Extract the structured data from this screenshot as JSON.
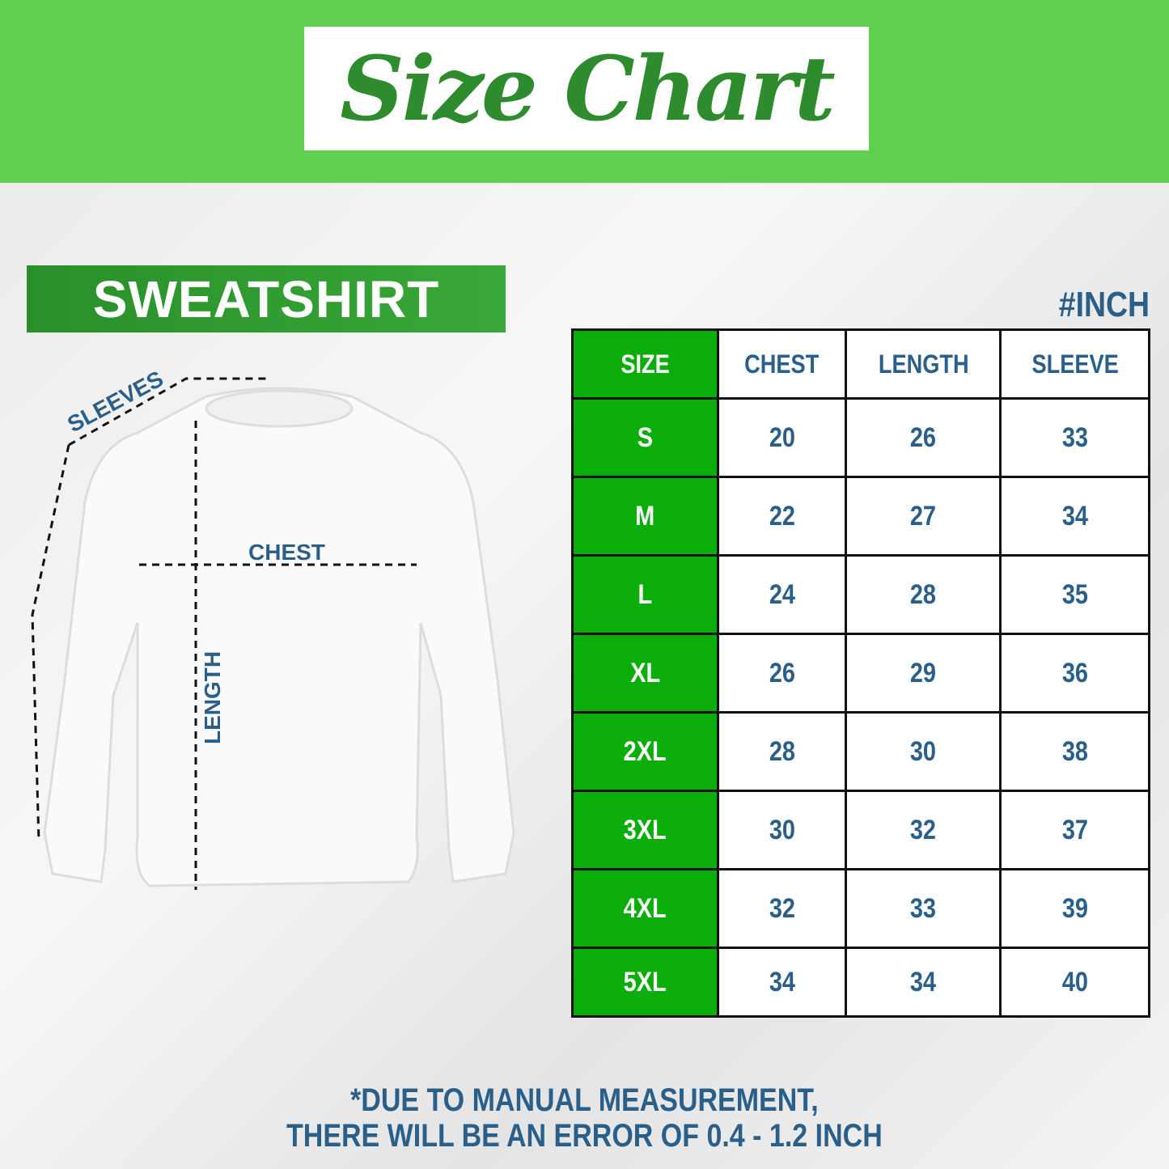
{
  "title": "Size Chart",
  "product_label": "SWEATSHIRT",
  "unit": "#INCH",
  "diagram": {
    "sleeves": "SLEEVES",
    "chest": "CHEST",
    "length": "LENGTH"
  },
  "table": {
    "headers": [
      "SIZE",
      "CHEST",
      "LENGTH",
      "SLEEVE"
    ],
    "rows": [
      [
        "S",
        "20",
        "26",
        "33"
      ],
      [
        "M",
        "22",
        "27",
        "34"
      ],
      [
        "L",
        "24",
        "28",
        "35"
      ],
      [
        "XL",
        "26",
        "29",
        "36"
      ],
      [
        "2XL",
        "28",
        "30",
        "38"
      ],
      [
        "3XL",
        "30",
        "32",
        "37"
      ],
      [
        "4XL",
        "32",
        "33",
        "39"
      ],
      [
        "5XL",
        "34",
        "34",
        "40"
      ]
    ]
  },
  "note": {
    "line1": "*DUE TO MANUAL MEASUREMENT,",
    "line2": "THERE WILL BE AN ERROR OF 0.4 - 1.2 INCH"
  },
  "colors": {
    "banner": "#5fcf4f",
    "title": "#2e8b2e",
    "size_column": "#0aad0a",
    "text": "#2a5f8a"
  }
}
